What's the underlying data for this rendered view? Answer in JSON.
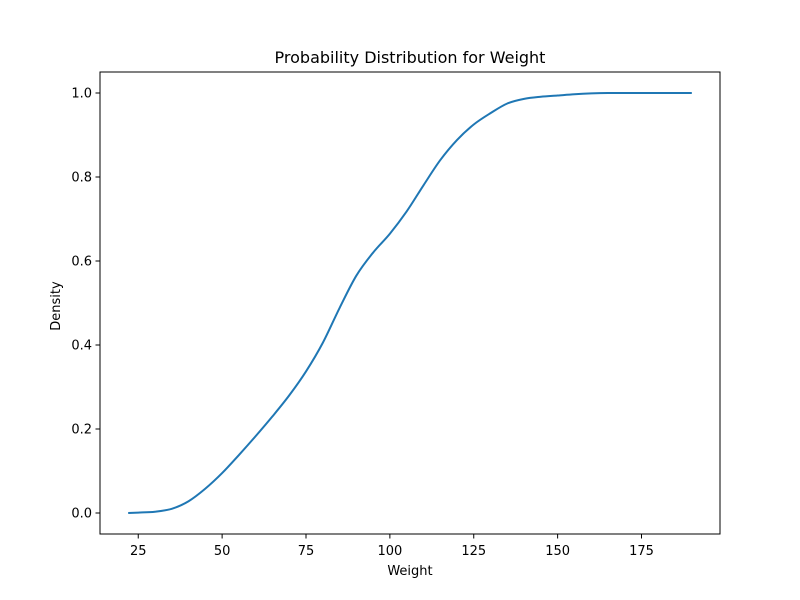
{
  "chart_data": {
    "type": "line",
    "title": "Probability Distribution for Weight",
    "xlabel": "Weight",
    "ylabel": "Density",
    "xlim": [
      13.6,
      198.4
    ],
    "ylim": [
      -0.05,
      1.05
    ],
    "xticks": [
      25,
      50,
      75,
      100,
      125,
      150,
      175
    ],
    "yticks": [
      0.0,
      0.2,
      0.4,
      0.6,
      0.8,
      1.0
    ],
    "grid": false,
    "legend": "none",
    "series": [
      {
        "color": "#1f77b4",
        "x": [
          22,
          25,
          30,
          35,
          40,
          45,
          50,
          55,
          60,
          65,
          70,
          75,
          80,
          85,
          90,
          95,
          100,
          105,
          110,
          115,
          120,
          125,
          130,
          135,
          140,
          145,
          150,
          155,
          160,
          165,
          170,
          175,
          180,
          185,
          190
        ],
        "y": [
          0.0,
          0.001,
          0.003,
          0.01,
          0.028,
          0.058,
          0.095,
          0.138,
          0.183,
          0.23,
          0.28,
          0.337,
          0.405,
          0.488,
          0.565,
          0.62,
          0.665,
          0.718,
          0.78,
          0.84,
          0.888,
          0.925,
          0.952,
          0.975,
          0.986,
          0.991,
          0.994,
          0.997,
          0.999,
          1.0,
          1.0,
          1.0,
          1.0,
          1.0,
          1.0
        ]
      }
    ]
  }
}
